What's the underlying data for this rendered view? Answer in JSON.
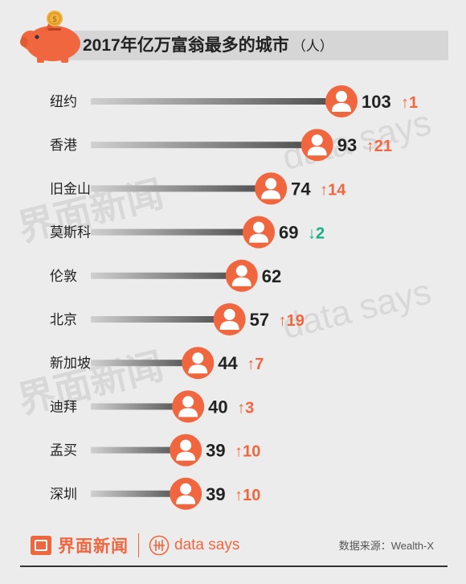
{
  "title": "2017年亿万富翁最多的城市",
  "title_unit": "（人）",
  "colors": {
    "accent": "#f0673f",
    "up": "#f0673f",
    "down": "#16b083",
    "bar_dark": "#4a4a4a",
    "bar_light": "#d0d0d0"
  },
  "chart_data": {
    "type": "bar",
    "orientation": "horizontal",
    "title": "2017年亿万富翁最多的城市（人）",
    "categories": [
      "纽约",
      "香港",
      "旧金山",
      "莫斯科",
      "伦敦",
      "北京",
      "新加坡",
      "迪拜",
      "孟买",
      "深圳"
    ],
    "values": [
      103,
      93,
      74,
      69,
      62,
      57,
      44,
      40,
      39,
      39
    ],
    "changes": [
      {
        "dir": "up",
        "label": "↑1"
      },
      {
        "dir": "up",
        "label": "↑21"
      },
      {
        "dir": "up",
        "label": "↑14"
      },
      {
        "dir": "down",
        "label": "↓2"
      },
      {
        "dir": "none",
        "label": ""
      },
      {
        "dir": "up",
        "label": "↑19"
      },
      {
        "dir": "up",
        "label": "↑7"
      },
      {
        "dir": "up",
        "label": "↑3"
      },
      {
        "dir": "up",
        "label": "↑10"
      },
      {
        "dir": "up",
        "label": "↑10"
      }
    ],
    "marker_icon": "person-icon",
    "grid": false,
    "legend": "none"
  },
  "footer": {
    "brand": "界面新闻",
    "brand2": "data says",
    "source": "数据来源：Wealth-X"
  },
  "watermarks": {
    "brand": "界面新闻",
    "brand2": "data says"
  }
}
